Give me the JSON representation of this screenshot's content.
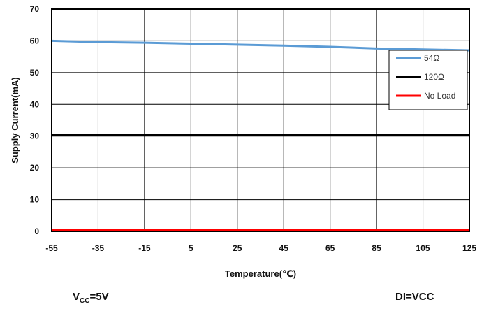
{
  "chart_data": {
    "type": "line",
    "title": "",
    "xlabel": "Temperature(℃)",
    "ylabel": "Supply Current(mA)",
    "xlim": [
      -55,
      125
    ],
    "ylim": [
      0,
      70
    ],
    "x_ticks": [
      -55,
      -35,
      -15,
      5,
      25,
      45,
      65,
      85,
      105,
      125
    ],
    "y_ticks": [
      0,
      10,
      20,
      30,
      40,
      50,
      60,
      70
    ],
    "grid": true,
    "legend_position": "right",
    "series": [
      {
        "name": "54Ω",
        "color": "#5b9bd5",
        "x": [
          -55,
          -35,
          -15,
          5,
          25,
          45,
          65,
          85,
          105,
          125
        ],
        "y": [
          60.0,
          59.6,
          59.4,
          59.1,
          58.8,
          58.5,
          58.1,
          57.6,
          57.3,
          57.0
        ]
      },
      {
        "name": "120Ω",
        "color": "#000000",
        "x": [
          -55,
          -35,
          -15,
          5,
          25,
          45,
          65,
          85,
          105,
          125
        ],
        "y": [
          30.5,
          30.5,
          30.5,
          30.5,
          30.5,
          30.5,
          30.5,
          30.5,
          30.5,
          30.5
        ]
      },
      {
        "name": "No Load",
        "color": "#ff0000",
        "x": [
          -55,
          -35,
          -15,
          5,
          25,
          45,
          65,
          85,
          105,
          125
        ],
        "y": [
          0.5,
          0.5,
          0.5,
          0.5,
          0.5,
          0.5,
          0.5,
          0.5,
          0.5,
          0.5
        ]
      }
    ]
  },
  "notes": {
    "vcc_prefix": "V",
    "vcc_sub": "CC",
    "vcc_value": "=5V",
    "di": "DI=VCC"
  }
}
